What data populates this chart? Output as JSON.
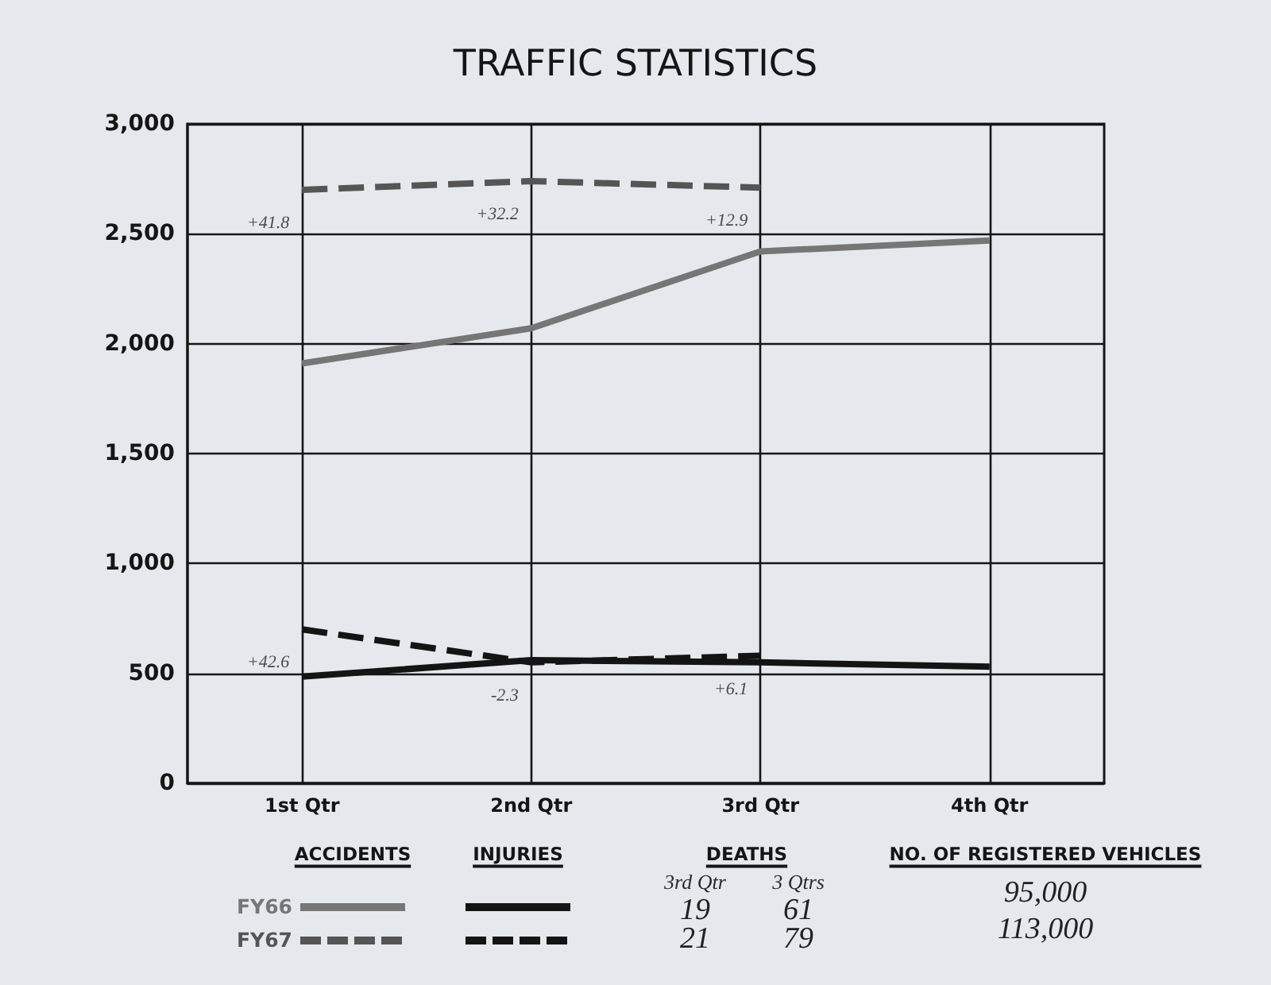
{
  "chart_data": [
    {
      "type": "line",
      "title": "TRAFFIC STATISTICS",
      "categories": [
        "1st Qtr",
        "2nd Qtr",
        "3rd Qtr",
        "4th Qtr"
      ],
      "series": [
        {
          "name": "FY66",
          "color": "#767676",
          "line_style": "solid",
          "values": [
            1910,
            2070,
            2420,
            2470
          ]
        },
        {
          "name": "FY67",
          "color": "#555555",
          "line_style": "dashed",
          "values": [
            2700,
            2740,
            2710,
            null
          ]
        },
        {
          "color": "#141414",
          "line_style": "solid",
          "values": [
            485,
            560,
            550,
            530
          ]
        },
        {
          "color": "#141414",
          "line_style": "dashed",
          "values": [
            700,
            550,
            580,
            null
          ]
        }
      ],
      "ylim": [
        0,
        3000
      ],
      "yticks": [
        0,
        500,
        {
          "value": 1000,
          "label": "1,000"
        },
        {
          "value": 1500,
          "label": "1,500"
        },
        {
          "value": 2000,
          "label": "2,000"
        },
        {
          "value": 2500,
          "label": "2,500"
        },
        {
          "value": 3000,
          "label": "3,000"
        }
      ],
      "grid": true,
      "legend": "bottom",
      "annotations": [
        "ACCIDENTS",
        "INJURIES",
        {
          "text": "+41.8",
          "x": "1st Qtr",
          "y": 2700
        },
        {
          "text": "+32.2",
          "x": "2nd Qtr",
          "y": 2740
        },
        {
          "text": "+12.9",
          "x": "3rd Qtr",
          "y": 2710
        },
        {
          "text": "+42.6",
          "x": "1st Qtr",
          "y": 700
        },
        {
          "text": "-2.3",
          "x": "2nd Qtr",
          "y": 550
        },
        {
          "text": "+6.1",
          "x": "3rd Qtr",
          "y": 580
        }
      ]
    },
    {
      "type": "other",
      "title": "DEATHS",
      "categories": [
        "3rd Qtr",
        "3 Qtrs"
      ],
      "series": [
        {
          "values": [
            19,
            61
          ]
        },
        {
          "values": [
            21,
            79
          ]
        }
      ],
      "data_labels": true
    },
    {
      "type": "other",
      "title": "NO. OF REGISTERED VEHICLES",
      "annotations": [
        "95,000",
        "113,000"
      ]
    }
  ]
}
